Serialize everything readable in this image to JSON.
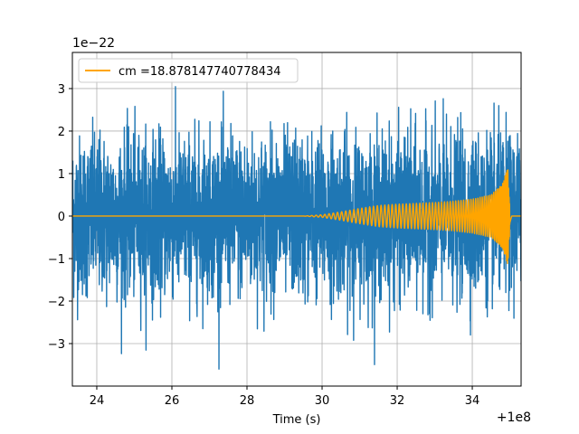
{
  "chart_data": {
    "type": "line",
    "title": "",
    "xlabel": "Time (s)",
    "ylabel": "",
    "x_offset_label": "+1e8",
    "y_scale_label": "1e−22",
    "xlim": [
      23.35,
      35.3
    ],
    "ylim": [
      -4.0,
      3.85
    ],
    "x_ticks": [
      24,
      26,
      28,
      30,
      32,
      34
    ],
    "x_tick_labels": [
      "24",
      "26",
      "28",
      "30",
      "32",
      "34"
    ],
    "y_ticks": [
      -3,
      -2,
      -1,
      0,
      1,
      2,
      3
    ],
    "y_tick_labels": [
      "−3",
      "−2",
      "−1",
      "0",
      "1",
      "2",
      "3"
    ],
    "grid": true,
    "legend": {
      "placement": "upper-left",
      "entries": [
        "cm =18.878147740778434"
      ]
    },
    "series": [
      {
        "kind": "noise_band",
        "color": "#1f77b4",
        "x_start": 23.35,
        "x_end": 35.3,
        "typical_amplitude": 1.5,
        "peak_max": 3.3,
        "peak_min": -3.6
      },
      {
        "name": "cm =18.878147740778434",
        "kind": "chirp",
        "color": "#ffa500",
        "envelope": [
          {
            "t": 23.35,
            "a": 0.0
          },
          {
            "t": 29.5,
            "a": 0.0
          },
          {
            "t": 30.0,
            "a": 0.03
          },
          {
            "t": 30.5,
            "a": 0.1
          },
          {
            "t": 31.0,
            "a": 0.18
          },
          {
            "t": 31.5,
            "a": 0.25
          },
          {
            "t": 32.0,
            "a": 0.28
          },
          {
            "t": 32.5,
            "a": 0.3
          },
          {
            "t": 33.0,
            "a": 0.32
          },
          {
            "t": 33.5,
            "a": 0.35
          },
          {
            "t": 34.0,
            "a": 0.4
          },
          {
            "t": 34.5,
            "a": 0.5
          },
          {
            "t": 34.8,
            "a": 0.75
          },
          {
            "t": 34.95,
            "a": 1.15
          },
          {
            "t": 35.0,
            "a": 0.3
          },
          {
            "t": 35.05,
            "a": 0.0
          },
          {
            "t": 35.3,
            "a": 0.0
          }
        ],
        "merger_peak": 1.12,
        "merger_trough": -1.22
      }
    ]
  }
}
